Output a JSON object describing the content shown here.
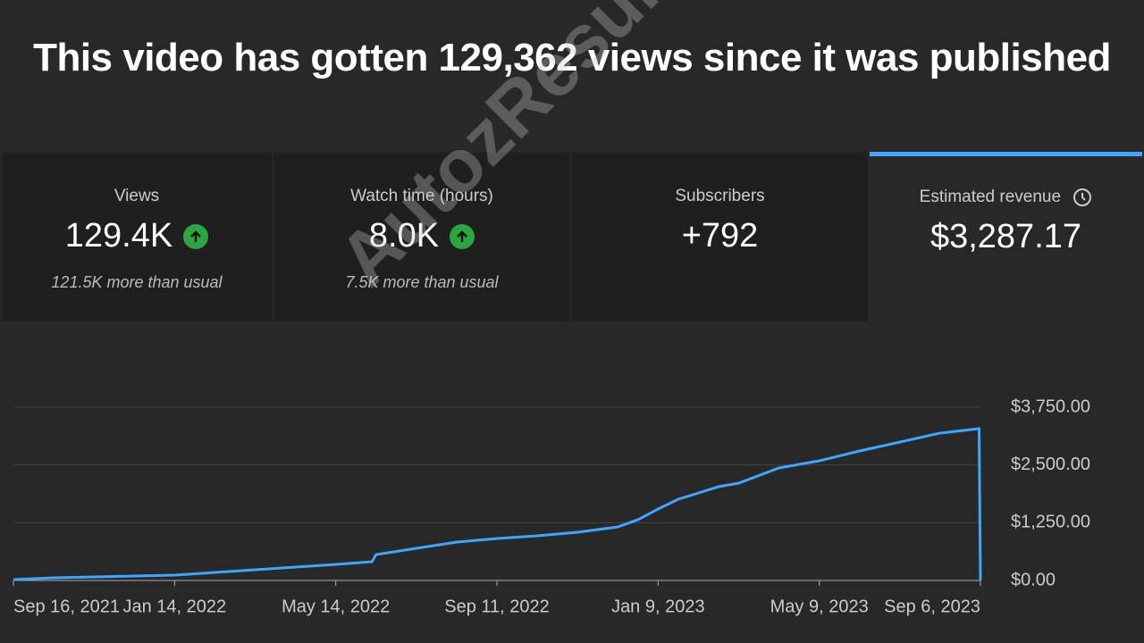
{
  "header": {
    "title": "This video has gotten 129,362 views since it was published"
  },
  "cards": [
    {
      "label": "Views",
      "value": "129.4K",
      "note": "121.5K more than usual"
    },
    {
      "label": "Watch time (hours)",
      "value": "8.0K",
      "note": "7.5K more than usual"
    },
    {
      "label": "Subscribers",
      "value": "+792"
    },
    {
      "label": "Estimated revenue",
      "value": "$3,287.17"
    }
  ],
  "watermark": "AutozResults",
  "chart_data": {
    "type": "line",
    "x": [
      "2021-09-16",
      "2021-10-16",
      "2021-11-15",
      "2021-12-15",
      "2022-01-14",
      "2022-02-13",
      "2022-03-15",
      "2022-04-14",
      "2022-05-14",
      "2022-06-01",
      "2022-06-10",
      "2022-06-13",
      "2022-07-13",
      "2022-08-12",
      "2022-09-11",
      "2022-10-11",
      "2022-11-10",
      "2022-12-10",
      "2022-12-25",
      "2023-01-09",
      "2023-01-24",
      "2023-02-08",
      "2023-02-23",
      "2023-03-10",
      "2023-04-09",
      "2023-05-09",
      "2023-06-08",
      "2023-07-08",
      "2023-08-07",
      "2023-09-05",
      "2023-09-06"
    ],
    "values": [
      20,
      58,
      77,
      97,
      116,
      174,
      232,
      290,
      348,
      387,
      406,
      561,
      696,
      831,
      909,
      967,
      1044,
      1160,
      1315,
      1547,
      1759,
      1894,
      2030,
      2107,
      2436,
      2590,
      2803,
      2996,
      3190,
      3287,
      0
    ],
    "color": "#3ea6ff",
    "xlim": [
      "2021-09-16",
      "2023-09-06"
    ],
    "xticks": [
      {
        "value": "2021-09-16",
        "label": "Sep 16, 2021"
      },
      {
        "value": "2022-01-14",
        "label": "Jan 14, 2022"
      },
      {
        "value": "2022-05-14",
        "label": "May 14, 2022"
      },
      {
        "value": "2022-09-11",
        "label": "Sep 11, 2022"
      },
      {
        "value": "2023-01-09",
        "label": "Jan 9, 2023"
      },
      {
        "value": "2023-05-09",
        "label": "May 9, 2023"
      },
      {
        "value": "2023-09-06",
        "label": "Sep 6, 2023"
      }
    ],
    "ylim": [
      0,
      3750
    ],
    "yticks": [
      {
        "value": 0,
        "label": "$0.00"
      },
      {
        "value": 1250,
        "label": "$1,250.00"
      },
      {
        "value": 2500,
        "label": "$2,500.00"
      },
      {
        "value": 3750,
        "label": "$3,750.00"
      }
    ],
    "grid": true
  }
}
